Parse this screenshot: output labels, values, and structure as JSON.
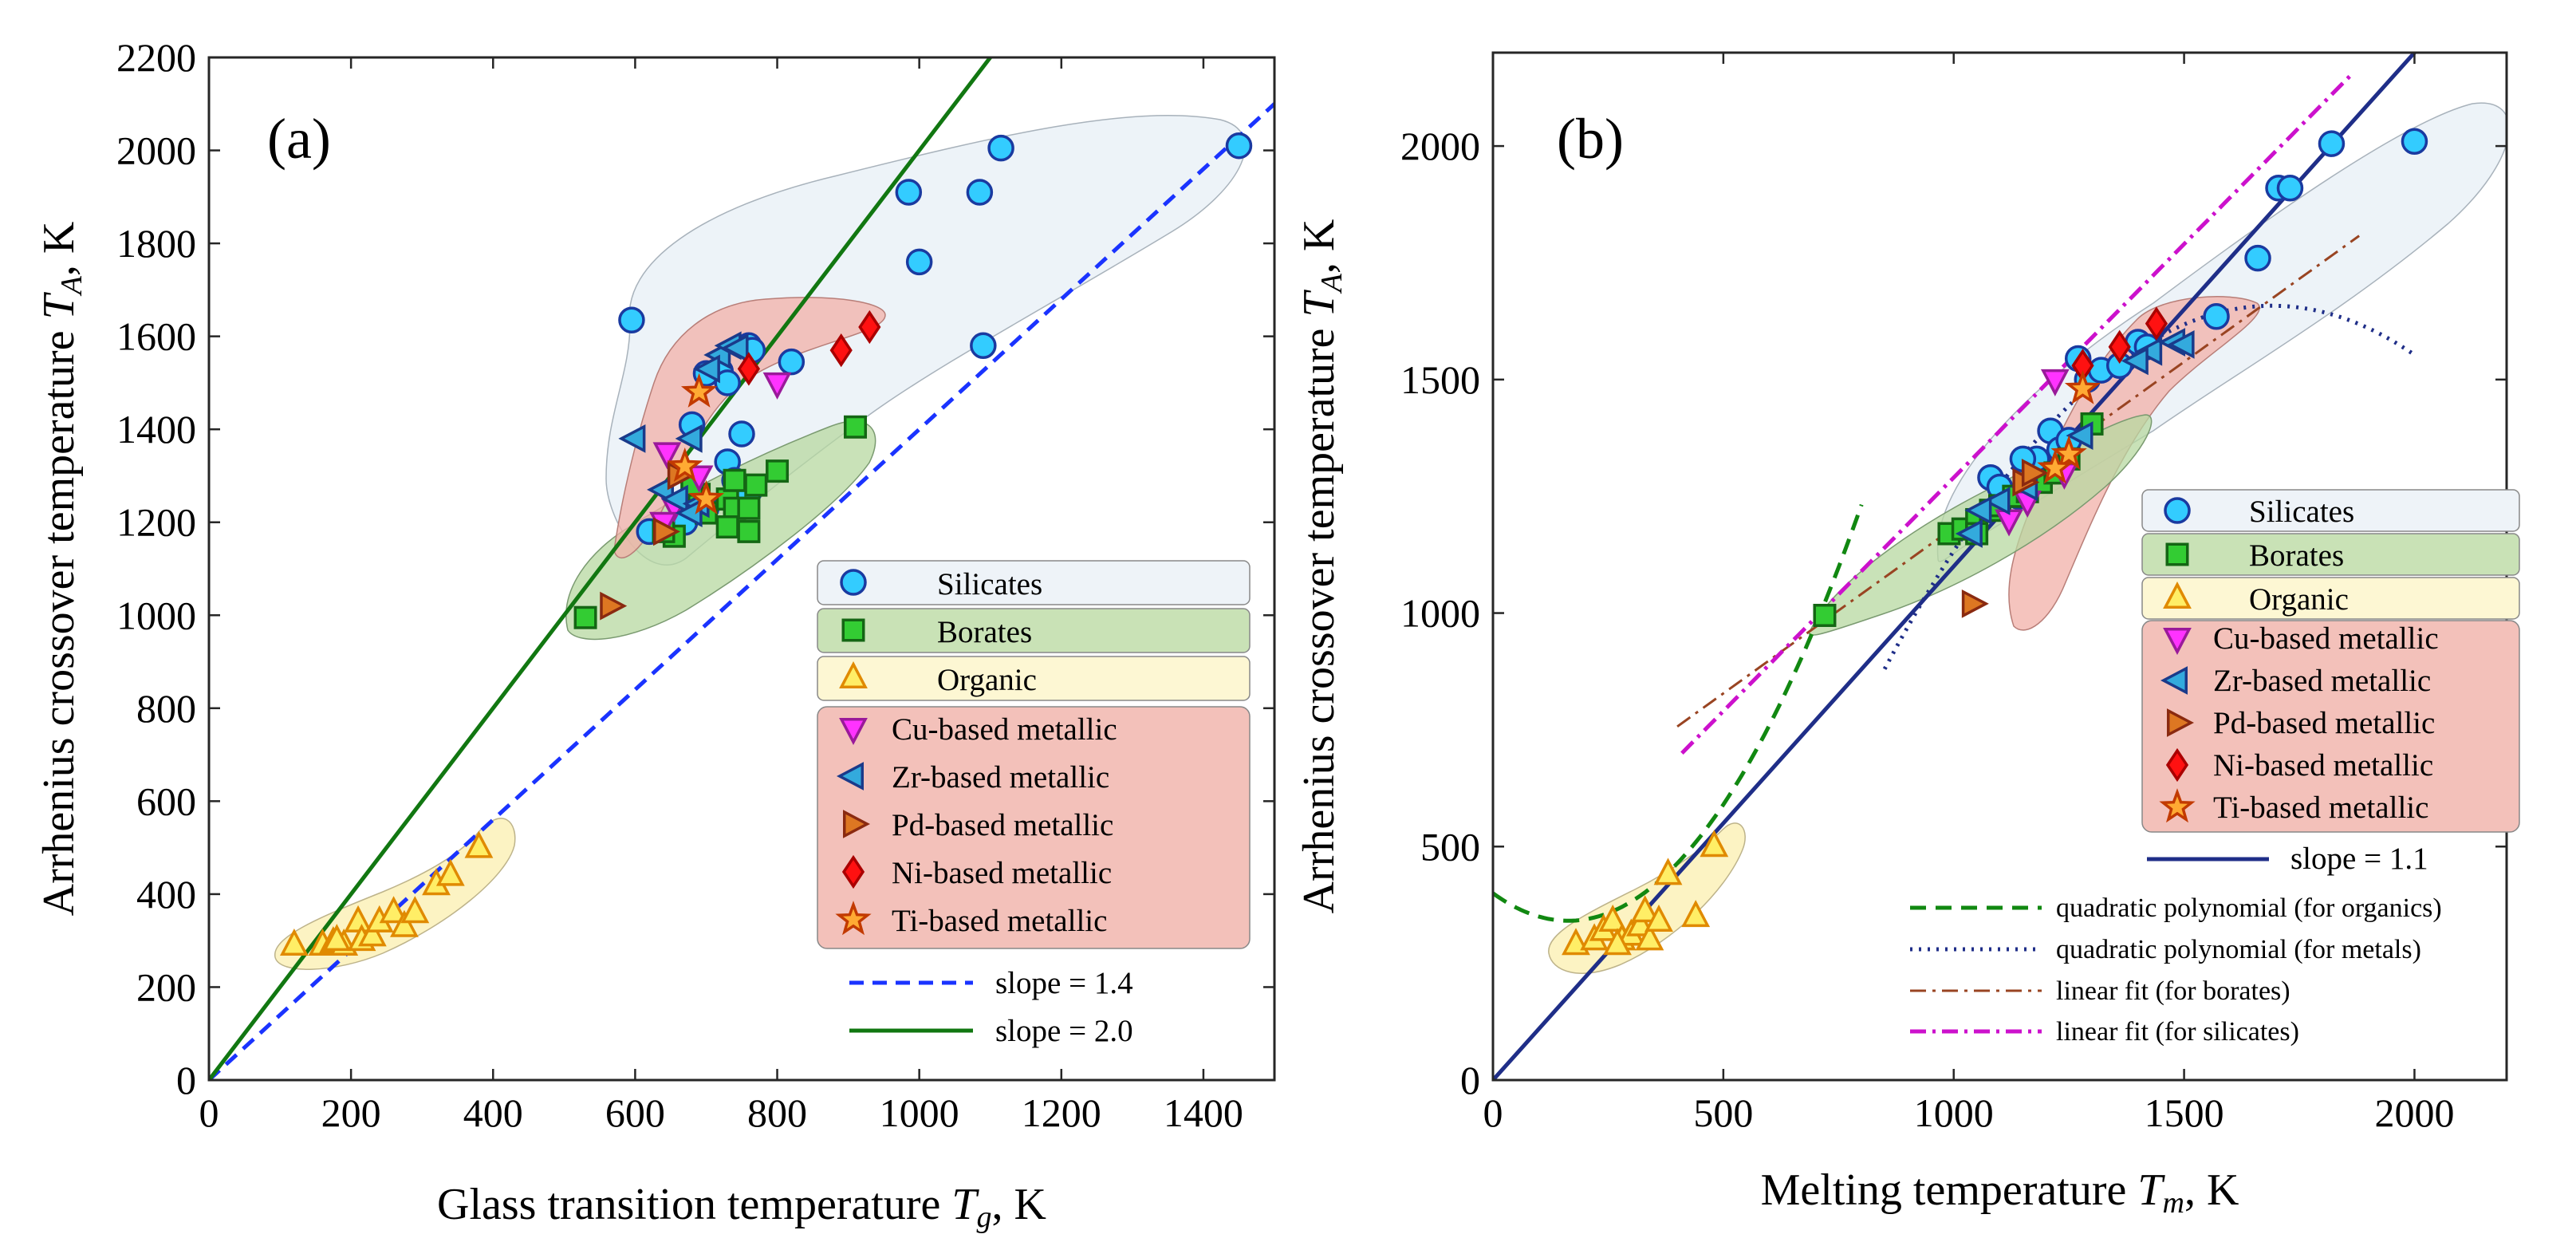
{
  "figure": "Arrhenius crossover temperature versus glass transition temperature and melting temperature",
  "colors": {
    "silicates_marker": "#33ccff",
    "borates_marker": "#33cc33",
    "organic_marker": "#ffee66",
    "cu": "#ff33ff",
    "zr": "#33aadd",
    "pd": "#dd7722",
    "ni": "#ff1111",
    "ti": "#ffaa33",
    "silicate_region": "#dfe9f2",
    "borate_region": "#b7d8a0",
    "organic_region": "#fbf1b8",
    "metallic_region": "#f2b0a8",
    "slope_blue": "#1a33ff",
    "slope_green": "#117711",
    "slope_navy": "#1f2e88",
    "quad_org": "#118811",
    "quad_met": "#1f2e88",
    "lin_bor": "#994422",
    "lin_sil": "#cc11cc"
  },
  "chart_data": [
    {
      "panel": "(a)",
      "type": "scatter",
      "xlabel": "Glass transition temperature",
      "xsym": "T",
      "xsub": "g",
      "xunit": ", K",
      "ylabel": "Arrhenius crossover temperature",
      "ysym": "T",
      "ysub": "A",
      "yunit": ", K",
      "xlim": [
        0,
        1500
      ],
      "ylim": [
        0,
        2200
      ],
      "xticks": [
        0,
        200,
        400,
        600,
        800,
        1000,
        1200,
        1400
      ],
      "yticks": [
        0,
        200,
        400,
        600,
        800,
        1000,
        1200,
        1400,
        1600,
        1800,
        2000,
        2200
      ],
      "series": [
        {
          "name": "Silicates",
          "marker": "circle",
          "points": [
            [
              595,
              1635
            ],
            [
              985,
              1910
            ],
            [
              1000,
              1760
            ],
            [
              1085,
              1910
            ],
            [
              1115,
              2005
            ],
            [
              1450,
              2010
            ],
            [
              1090,
              1580
            ],
            [
              720,
              1525
            ],
            [
              760,
              1580
            ],
            [
              765,
              1570
            ],
            [
              820,
              1545
            ],
            [
              730,
              1500
            ],
            [
              700,
              1520
            ],
            [
              750,
              1390
            ],
            [
              680,
              1410
            ],
            [
              730,
              1330
            ],
            [
              740,
              1290
            ],
            [
              760,
              1265
            ],
            [
              620,
              1180
            ],
            [
              650,
              1190
            ],
            [
              670,
              1200
            ],
            [
              700,
              1230
            ]
          ]
        },
        {
          "name": "Borates",
          "marker": "square",
          "points": [
            [
              530,
              995
            ],
            [
              655,
              1170
            ],
            [
              640,
              1180
            ],
            [
              700,
              1220
            ],
            [
              730,
              1250
            ],
            [
              740,
              1230
            ],
            [
              730,
              1190
            ],
            [
              760,
              1180
            ],
            [
              760,
              1230
            ],
            [
              770,
              1280
            ],
            [
              740,
              1290
            ],
            [
              800,
              1310
            ],
            [
              910,
              1405
            ],
            [
              690,
              1260
            ],
            [
              680,
              1280
            ]
          ]
        },
        {
          "name": "Organic",
          "marker": "triangle-up",
          "points": [
            [
              120,
              290
            ],
            [
              160,
              290
            ],
            [
              175,
              295
            ],
            [
              190,
              290
            ],
            [
              210,
              340
            ],
            [
              215,
              300
            ],
            [
              230,
              310
            ],
            [
              240,
              340
            ],
            [
              260,
              360
            ],
            [
              275,
              330
            ],
            [
              290,
              360
            ],
            [
              320,
              420
            ],
            [
              340,
              440
            ],
            [
              380,
              500
            ],
            [
              180,
              300
            ]
          ]
        },
        {
          "name": "Cu-based metallic",
          "marker": "triangle-down",
          "points": [
            [
              645,
              1350
            ],
            [
              800,
              1500
            ],
            [
              690,
              1300
            ],
            [
              655,
              1235
            ],
            [
              640,
              1200
            ]
          ]
        },
        {
          "name": "Zr-based metallic",
          "marker": "triangle-left",
          "points": [
            [
              600,
              1380
            ],
            [
              720,
              1560
            ],
            [
              735,
              1580
            ],
            [
              745,
              1575
            ],
            [
              705,
              1530
            ],
            [
              680,
              1380
            ],
            [
              640,
              1270
            ],
            [
              660,
              1250
            ],
            [
              690,
              1240
            ],
            [
              680,
              1220
            ]
          ]
        },
        {
          "name": "Pd-based metallic",
          "marker": "triangle-right",
          "points": [
            [
              565,
              1020
            ],
            [
              640,
              1180
            ],
            [
              660,
              1300
            ]
          ]
        },
        {
          "name": "Ni-based metallic",
          "marker": "diamond",
          "points": [
            [
              760,
              1530
            ],
            [
              890,
              1570
            ],
            [
              930,
              1620
            ]
          ]
        },
        {
          "name": "Ti-based metallic",
          "marker": "star",
          "points": [
            [
              690,
              1480
            ],
            [
              670,
              1320
            ],
            [
              700,
              1250
            ]
          ]
        }
      ],
      "lines": [
        {
          "name": "slope = 1.4",
          "slope": 1.4,
          "style": "dashed"
        },
        {
          "name": "slope = 2.0",
          "slope": 2.0,
          "style": "solid"
        }
      ]
    },
    {
      "panel": "(b)",
      "type": "scatter",
      "xlabel": "Melting temperature",
      "xsym": "T",
      "xsub": "m",
      "xunit": ", K",
      "ylabel": "Arrhenius crossover temperature",
      "ysym": "T",
      "ysub": "A",
      "yunit": ", K",
      "xlim": [
        0,
        2200
      ],
      "ylim": [
        0,
        2200
      ],
      "xticks": [
        0,
        500,
        1000,
        1500,
        2000
      ],
      "yticks": [
        0,
        500,
        1000,
        1500,
        2000
      ],
      "series": [
        {
          "name": "Silicates",
          "marker": "circle",
          "points": [
            [
              1570,
              1635
            ],
            [
              1660,
              1760
            ],
            [
              1705,
              1910
            ],
            [
              1730,
              1910
            ],
            [
              1820,
              2005
            ],
            [
              2000,
              2010
            ],
            [
              1270,
              1545
            ],
            [
              1290,
              1500
            ],
            [
              1320,
              1520
            ],
            [
              1360,
              1530
            ],
            [
              1400,
              1580
            ],
            [
              1420,
              1570
            ],
            [
              1210,
              1390
            ],
            [
              1180,
              1330
            ],
            [
              1150,
              1330
            ],
            [
              1080,
              1290
            ],
            [
              1100,
              1270
            ],
            [
              1140,
              1250
            ],
            [
              1230,
              1350
            ],
            [
              1250,
              1370
            ]
          ]
        },
        {
          "name": "Borates",
          "marker": "square",
          "points": [
            [
              720,
              995
            ],
            [
              990,
              1170
            ],
            [
              1020,
              1180
            ],
            [
              1050,
              1200
            ],
            [
              1080,
              1220
            ],
            [
              1100,
              1230
            ],
            [
              1130,
              1250
            ],
            [
              1160,
              1260
            ],
            [
              1190,
              1280
            ],
            [
              1220,
              1300
            ],
            [
              1250,
              1330
            ],
            [
              1300,
              1405
            ],
            [
              1050,
              1170
            ]
          ]
        },
        {
          "name": "Organic",
          "marker": "triangle-up",
          "points": [
            [
              180,
              290
            ],
            [
              220,
              300
            ],
            [
              240,
              320
            ],
            [
              260,
              340
            ],
            [
              280,
              300
            ],
            [
              300,
              310
            ],
            [
              320,
              330
            ],
            [
              330,
              360
            ],
            [
              340,
              300
            ],
            [
              360,
              340
            ],
            [
              380,
              440
            ],
            [
              440,
              350
            ],
            [
              480,
              500
            ],
            [
              270,
              290
            ]
          ]
        },
        {
          "name": "Cu-based metallic",
          "marker": "triangle-down",
          "points": [
            [
              1220,
              1500
            ],
            [
              1240,
              1300
            ],
            [
              1160,
              1240
            ],
            [
              1120,
              1200
            ]
          ]
        },
        {
          "name": "Zr-based metallic",
          "marker": "triangle-left",
          "points": [
            [
              1430,
              1560
            ],
            [
              1480,
              1580
            ],
            [
              1500,
              1575
            ],
            [
              1400,
              1540
            ],
            [
              1280,
              1380
            ],
            [
              1160,
              1270
            ],
            [
              1100,
              1240
            ],
            [
              1060,
              1220
            ],
            [
              1040,
              1170
            ]
          ]
        },
        {
          "name": "Pd-based metallic",
          "marker": "triangle-right",
          "points": [
            [
              1040,
              1020
            ],
            [
              1150,
              1280
            ],
            [
              1170,
              1300
            ]
          ]
        },
        {
          "name": "Ni-based metallic",
          "marker": "diamond",
          "points": [
            [
              1280,
              1530
            ],
            [
              1360,
              1570
            ],
            [
              1440,
              1620
            ]
          ]
        },
        {
          "name": "Ti-based metallic",
          "marker": "star",
          "points": [
            [
              1280,
              1480
            ],
            [
              1250,
              1340
            ],
            [
              1220,
              1310
            ]
          ]
        }
      ],
      "lines": [
        {
          "name": "slope = 1.1",
          "slope": 1.1,
          "style": "solid"
        },
        {
          "name": "quadratic polynomial (for organics)",
          "style": "dashed",
          "coefficients": [
            0.0022,
            -0.72,
            400
          ],
          "x_range": [
            0,
            800
          ]
        },
        {
          "name": "quadratic polynomial (for metals)",
          "style": "dotted",
          "coefficients": [
            -0.0011,
            3.72,
            -1487
          ],
          "x_range": [
            850,
            2000
          ]
        },
        {
          "name": "linear fit (for borates)",
          "style": "dashdot",
          "coefficients": [
            0.71,
            473
          ],
          "x_range": [
            400,
            1880
          ]
        },
        {
          "name": "linear fit (for silicates)",
          "style": "dashdot",
          "coefficients": [
            1.0,
            290
          ],
          "x_range": [
            410,
            1860
          ]
        }
      ]
    }
  ]
}
